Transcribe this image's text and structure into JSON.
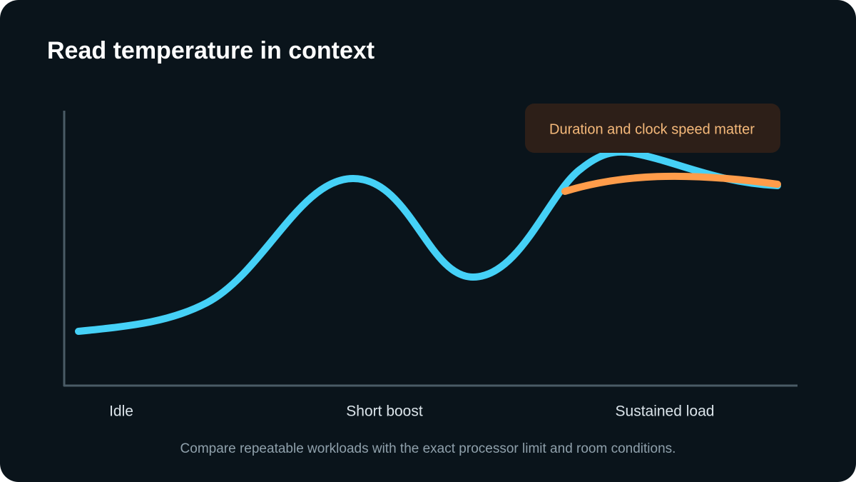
{
  "title": "Read temperature in context",
  "callout": "Duration and clock speed matter",
  "stages": [
    "Idle",
    "Short boost",
    "Sustained load"
  ],
  "caption": "Compare repeatable workloads with the exact processor limit and room conditions."
}
